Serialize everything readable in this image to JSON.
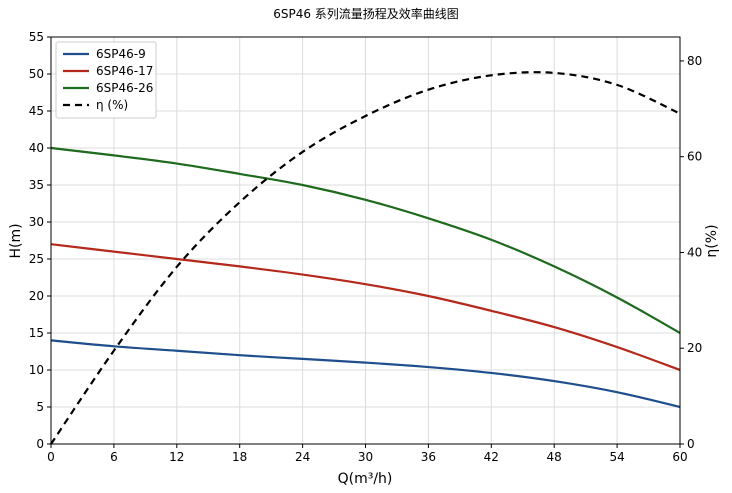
{
  "chart_data": {
    "type": "line",
    "title": "6SP46 系列流量扬程及效率曲线图",
    "xlabel": "Q(m³/h)",
    "ylabel": "H(m)",
    "y2label": "η(%)",
    "xlim": [
      0,
      60
    ],
    "ylim": [
      0,
      55
    ],
    "y2lim": [
      0,
      85
    ],
    "xticks": [
      0,
      6,
      12,
      18,
      24,
      30,
      36,
      42,
      48,
      54,
      60
    ],
    "yticks": [
      0,
      5,
      10,
      15,
      20,
      25,
      30,
      35,
      40,
      45,
      50,
      55
    ],
    "y2ticks": [
      0,
      20,
      40,
      60,
      80
    ],
    "grid": true,
    "legend_position": "top-left",
    "x": [
      0,
      6,
      12,
      18,
      24,
      30,
      36,
      42,
      48,
      54,
      60
    ],
    "series": [
      {
        "name": "6SP46-9",
        "axis": "left",
        "color": "#1f4e8c",
        "dash": "solid",
        "values": [
          14.0,
          13.2,
          12.6,
          12.0,
          11.5,
          11.0,
          10.4,
          9.6,
          8.5,
          7.0,
          5.0
        ]
      },
      {
        "name": "6SP46-17",
        "axis": "left",
        "color": "#b5281c",
        "dash": "solid",
        "values": [
          27.0,
          26.0,
          25.0,
          24.0,
          22.9,
          21.6,
          20.0,
          18.0,
          15.8,
          13.1,
          10.0
        ]
      },
      {
        "name": "6SP46-26",
        "axis": "left",
        "color": "#1e6b1e",
        "dash": "solid",
        "values": [
          40.0,
          39.0,
          37.9,
          36.5,
          35.0,
          33.0,
          30.5,
          27.6,
          24.0,
          19.8,
          15.0
        ]
      },
      {
        "name": "η (%)",
        "axis": "right",
        "color": "#000000",
        "dash": "dashed",
        "values": [
          0,
          19.5,
          37,
          50.5,
          61,
          68.5,
          74,
          77,
          77.5,
          75,
          69
        ]
      }
    ]
  }
}
